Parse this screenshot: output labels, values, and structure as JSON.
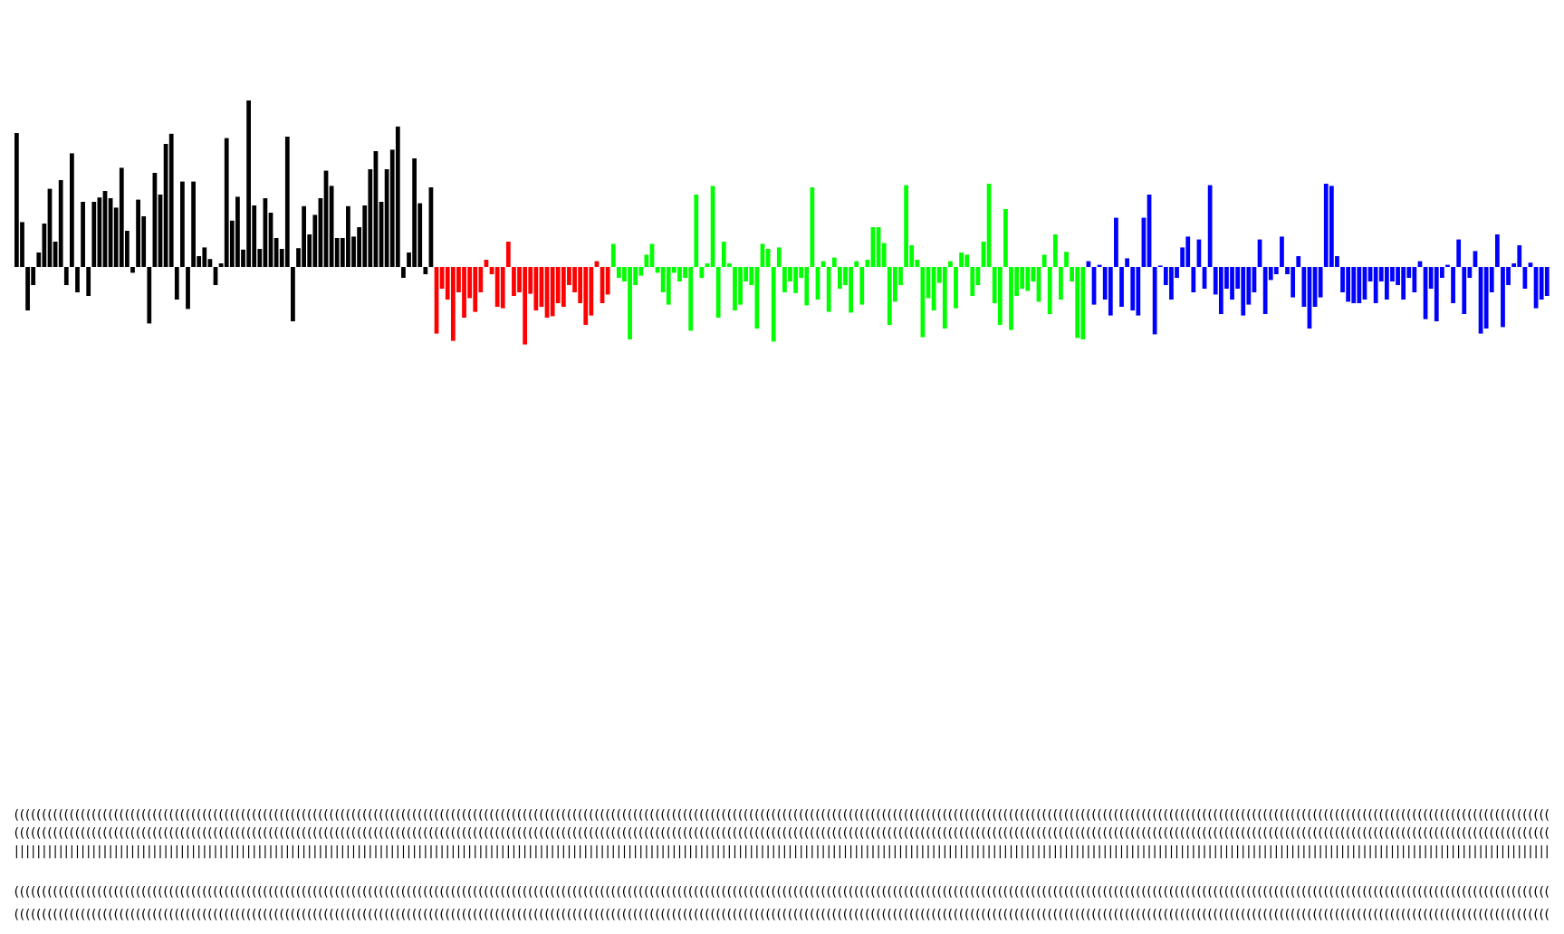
{
  "chart_data": {
    "type": "bar",
    "title": "",
    "xlabel": "",
    "ylabel": "",
    "ylim": [
      -1.1,
      2.2
    ],
    "grid": false,
    "legend": "none",
    "tick_labels": "illegible (dense overlapping rotated category labels)",
    "series": [
      {
        "color": "#000000",
        "values": [
          1.85,
          0.62,
          -0.6,
          -0.25,
          0.2,
          0.6,
          1.08,
          0.35,
          1.2,
          -0.25,
          1.57,
          -0.35,
          0.9,
          -0.4,
          0.9,
          0.96,
          1.05,
          0.95,
          0.82,
          1.37,
          0.5,
          -0.08,
          0.93,
          0.7,
          -0.78,
          1.3,
          1.0,
          1.7,
          1.84,
          -0.45,
          1.18,
          -0.58,
          1.18,
          0.15,
          0.27,
          0.11,
          -0.25,
          0.05,
          1.78,
          0.64,
          0.97,
          0.24,
          2.3,
          0.85,
          0.25,
          0.95,
          0.75,
          0.4,
          0.25,
          1.8,
          -0.75,
          0.26,
          0.84,
          0.45,
          0.72,
          0.95,
          1.33,
          1.12,
          0.4,
          0.4,
          0.84,
          0.42,
          0.55,
          0.85,
          1.35,
          1.6,
          0.9,
          1.35,
          1.62,
          1.94,
          -0.15,
          0.2,
          1.5,
          0.88,
          -0.1,
          1.1
        ]
      },
      {
        "color": "#ff0000",
        "values": [
          -0.92,
          -0.3,
          -0.45,
          -1.02,
          -0.35,
          -0.7,
          -0.43,
          -0.62,
          -0.35,
          0.1,
          -0.1,
          -0.55,
          -0.57,
          0.35,
          -0.4,
          -0.35,
          -1.07,
          -0.37,
          -0.6,
          -0.55,
          -0.7,
          -0.68,
          -0.5,
          -0.55,
          -0.25,
          -0.35,
          -0.5,
          -0.8,
          -0.67,
          0.08,
          -0.5,
          -0.38
        ]
      },
      {
        "color": "#00ff00",
        "values": [
          0.32,
          -0.15,
          -0.2,
          -1.0,
          -0.25,
          -0.12,
          0.17,
          0.32,
          -0.08,
          -0.35,
          -0.52,
          -0.08,
          -0.2,
          -0.15,
          -0.88,
          1.0,
          -0.15,
          0.05,
          1.12,
          -0.7,
          0.35,
          0.05,
          -0.6,
          -0.52,
          -0.2,
          -0.25,
          -0.85,
          0.32,
          0.25,
          -1.03,
          0.27,
          -0.35,
          -0.2,
          -0.36,
          -0.15,
          -0.53,
          1.1,
          -0.45,
          0.08,
          -0.62,
          0.13,
          -0.3,
          -0.25,
          -0.63,
          0.08,
          -0.52,
          0.1,
          0.55,
          0.55,
          0.33,
          -0.8,
          -0.48,
          -0.25,
          1.13,
          0.3,
          0.1,
          -0.97,
          -0.43,
          -0.6,
          -0.22,
          -0.85,
          0.08,
          -0.57,
          0.2,
          0.17,
          -0.4,
          -0.25,
          0.35,
          1.15,
          -0.5,
          -0.8,
          0.8,
          -0.87,
          -0.4,
          -0.3,
          -0.33,
          -0.2,
          -0.48,
          0.17,
          -0.65,
          0.45,
          -0.45,
          0.21,
          -0.2,
          -0.98,
          -1.0
        ]
      },
      {
        "color": "#0000ff",
        "values": [
          0.08,
          -0.52,
          0.03,
          -0.45,
          -0.67,
          0.68,
          -0.55,
          0.12,
          -0.6,
          -0.67,
          0.68,
          1.0,
          -0.93,
          0.02,
          -0.25,
          -0.45,
          -0.15,
          0.27,
          0.42,
          -0.35,
          0.38,
          -0.3,
          1.13,
          -0.38,
          -0.65,
          -0.3,
          -0.45,
          -0.3,
          -0.67,
          -0.52,
          -0.35,
          0.38,
          -0.65,
          -0.18,
          -0.1,
          0.42,
          -0.1,
          -0.42,
          0.15,
          -0.55,
          -0.85,
          -0.55,
          -0.42,
          1.15,
          1.12,
          0.15,
          -0.35,
          -0.48,
          -0.5,
          -0.5,
          -0.45,
          -0.2,
          -0.5,
          -0.2,
          -0.45,
          -0.2,
          -0.25,
          -0.45,
          -0.15,
          -0.35,
          0.08,
          -0.72,
          -0.3,
          -0.75,
          -0.15,
          0.03,
          -0.5,
          0.38,
          -0.65,
          -0.15,
          0.22,
          -0.92,
          -0.85,
          -0.35,
          0.45,
          -0.83,
          -0.25,
          0.05,
          0.3,
          -0.3,
          0.06,
          -0.57,
          -0.45,
          -0.4
        ]
      }
    ]
  }
}
